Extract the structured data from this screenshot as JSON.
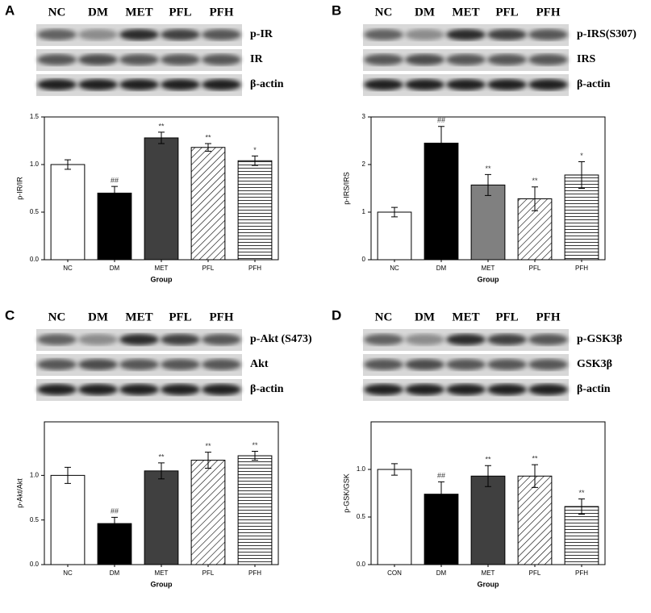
{
  "chart_data": [
    {
      "type": "bar",
      "panel": "A",
      "blot": {
        "lanes": [
          "NC",
          "DM",
          "MET",
          "PFL",
          "PFH"
        ],
        "bands": [
          "p-IR",
          "IR",
          "β-actin"
        ]
      },
      "categories": [
        "NC",
        "DM",
        "MET",
        "PFL",
        "PFH"
      ],
      "values": [
        1.0,
        0.7,
        1.28,
        1.18,
        1.04
      ],
      "errors": [
        0.05,
        0.07,
        0.06,
        0.04,
        0.05
      ],
      "annotations": [
        null,
        "##",
        "**",
        "**",
        "*"
      ],
      "colors": [
        "#ffffff",
        "#000000",
        "#404040",
        "#ffffff",
        "#ffffff"
      ],
      "hatches": [
        null,
        null,
        null,
        "diagonal",
        "horizontal"
      ],
      "ylim": [
        0,
        1.5
      ],
      "yticks": [
        {
          "value": 0,
          "label": "0.0"
        },
        {
          "value": 0.5,
          "label": "0.5"
        },
        {
          "value": 1,
          "label": "1.0"
        },
        {
          "value": 1.5,
          "label": "1.5"
        }
      ],
      "xlabel": "Group",
      "ylabel": "p-IR/IR"
    },
    {
      "type": "bar",
      "panel": "B",
      "blot": {
        "lanes": [
          "NC",
          "DM",
          "MET",
          "PFL",
          "PFH"
        ],
        "bands": [
          "p-IRS(S307)",
          "IRS",
          "β-actin"
        ]
      },
      "categories": [
        "NC",
        "DM",
        "MET",
        "PFL",
        "PFH"
      ],
      "values": [
        1.0,
        2.45,
        1.57,
        1.28,
        1.78
      ],
      "errors": [
        0.1,
        0.35,
        0.22,
        0.25,
        0.28
      ],
      "annotations": [
        null,
        "##",
        "**",
        "**",
        "*"
      ],
      "colors": [
        "#ffffff",
        "#000000",
        "#808080",
        "#ffffff",
        "#ffffff"
      ],
      "hatches": [
        null,
        null,
        null,
        "diagonal",
        "horizontal"
      ],
      "ylim": [
        0,
        3
      ],
      "yticks": [
        0,
        1,
        2,
        3
      ],
      "xlabel": "Group",
      "ylabel": "p-IRS/IRS"
    },
    {
      "type": "bar",
      "panel": "C",
      "blot": {
        "lanes": [
          "NC",
          "DM",
          "MET",
          "PFL",
          "PFH"
        ],
        "bands": [
          "p-Akt (S473)",
          "Akt",
          "β-actin"
        ]
      },
      "categories": [
        "NC",
        "DM",
        "MET",
        "PFL",
        "PFH"
      ],
      "values": [
        1.0,
        0.46,
        1.05,
        1.17,
        1.22
      ],
      "errors": [
        0.09,
        0.07,
        0.09,
        0.09,
        0.05
      ],
      "annotations": [
        null,
        "##",
        "**",
        "**",
        "**"
      ],
      "colors": [
        "#ffffff",
        "#000000",
        "#404040",
        "#ffffff",
        "#ffffff"
      ],
      "hatches": [
        null,
        null,
        null,
        "diagonal",
        "horizontal"
      ],
      "ylim": [
        0,
        1.6
      ],
      "yticks": [
        {
          "value": 0,
          "label": "0.0"
        },
        {
          "value": 0.5,
          "label": "0.5"
        },
        {
          "value": 1,
          "label": "1.0"
        }
      ],
      "xlabel": "Group",
      "ylabel": "p-Akt/Akt"
    },
    {
      "type": "bar",
      "panel": "D",
      "blot": {
        "lanes": [
          "NC",
          "DM",
          "MET",
          "PFL",
          "PFH"
        ],
        "bands": [
          "p-GSK3β",
          "GSK3β",
          "β-actin"
        ]
      },
      "categories": [
        "CON",
        "DM",
        "MET",
        "PFL",
        "PFH"
      ],
      "values": [
        1.0,
        0.74,
        0.93,
        0.93,
        0.61
      ],
      "errors": [
        0.06,
        0.13,
        0.11,
        0.12,
        0.08
      ],
      "annotations": [
        null,
        "##",
        "**",
        "**",
        "**"
      ],
      "colors": [
        "#ffffff",
        "#000000",
        "#404040",
        "#ffffff",
        "#ffffff"
      ],
      "hatches": [
        null,
        null,
        null,
        "diagonal",
        "horizontal"
      ],
      "ylim": [
        0,
        1.5
      ],
      "yticks": [
        {
          "value": 0,
          "label": "0.0"
        },
        {
          "value": 0.5,
          "label": "0.5"
        },
        {
          "value": 1,
          "label": "1.0"
        }
      ],
      "xlabel": "Group",
      "ylabel": "p-GSK/GSK"
    }
  ]
}
